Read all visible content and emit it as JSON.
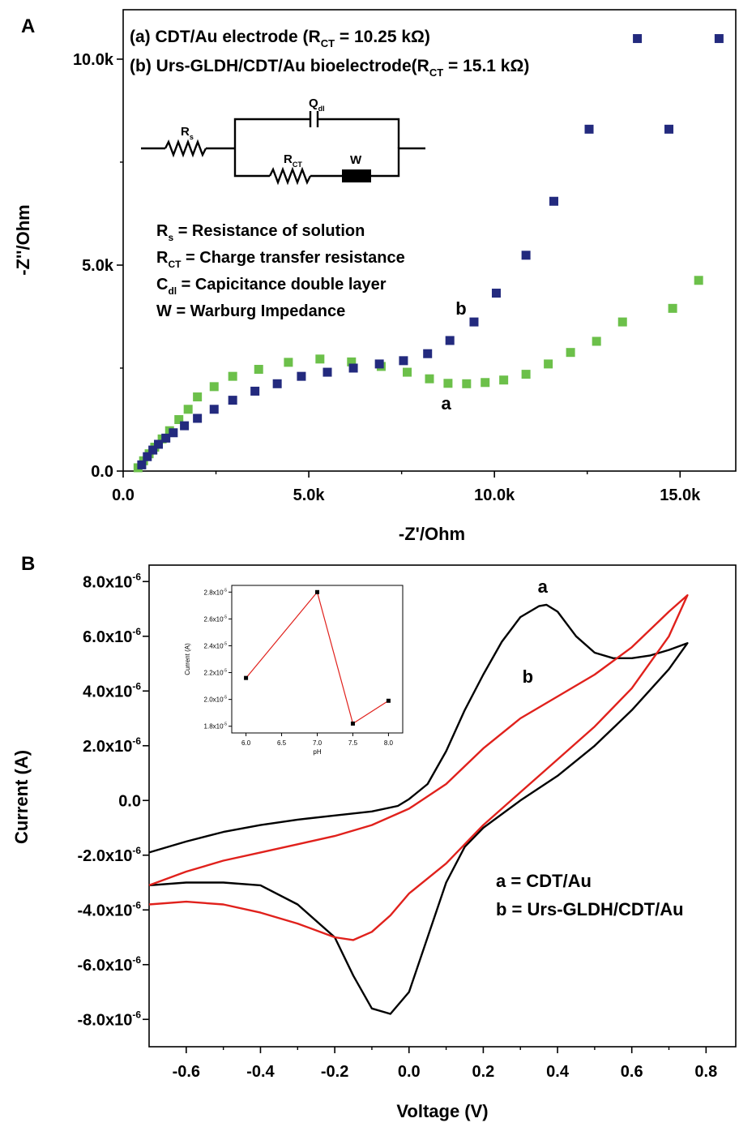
{
  "chart_data": [
    {
      "type": "scatter",
      "panel_label": "A",
      "xlabel": "-Z'/Ohm",
      "ylabel": "-Z''/Ohm",
      "xlim": [
        0,
        16500
      ],
      "ylim": [
        0,
        11200
      ],
      "x_ticks": [
        "0.0",
        "5.0k",
        "10.0k",
        "15.0k"
      ],
      "y_ticks": [
        "0.0",
        "5.0k",
        "10.0k"
      ],
      "legend_lines": [
        {
          "prefix": "(a) CDT/Au electrode (R",
          "sub": "CT",
          "suffix": " = 10.25 kΩ)"
        },
        {
          "prefix": "(b) Urs-GLDH/CDT/Au bioelectrode(R",
          "sub": "CT",
          "suffix": " = 15.1 kΩ)"
        }
      ],
      "definitions": [
        {
          "sym": "R",
          "sub": "s",
          "text": " = Resistance of solution"
        },
        {
          "sym": "R",
          "sub": "CT",
          "text": " = Charge transfer resistance"
        },
        {
          "sym": "C",
          "sub": "dl",
          "text": " = Capicitance double layer"
        },
        {
          "sym": "W",
          "sub": "",
          "text": " = Warburg Impedance"
        }
      ],
      "circuit_labels": {
        "rs": "R",
        "rs_sub": "s",
        "q": "Q",
        "q_sub": "dl",
        "rct": "R",
        "rct_sub": "CT",
        "w": "W"
      },
      "series": [
        {
          "name": "a",
          "color": "#6cc04a",
          "x": [
            400,
            550,
            700,
            850,
            1050,
            1250,
            1500,
            1750,
            2000,
            2450,
            2950,
            3650,
            4450,
            5300,
            6150,
            6950,
            7650,
            8250,
            8750,
            9250,
            9750,
            10250,
            10850,
            11450,
            12050,
            12750,
            13450,
            14800,
            15500
          ],
          "y": [
            80,
            250,
            420,
            580,
            780,
            980,
            1250,
            1500,
            1800,
            2050,
            2300,
            2470,
            2640,
            2720,
            2650,
            2540,
            2400,
            2240,
            2130,
            2120,
            2150,
            2210,
            2350,
            2600,
            2880,
            3150,
            3620,
            3950,
            4630
          ]
        },
        {
          "name": "b",
          "color": "#232a7e",
          "x": [
            500,
            650,
            800,
            950,
            1150,
            1350,
            1650,
            2000,
            2450,
            2950,
            3550,
            4150,
            4800,
            5500,
            6200,
            6900,
            7550,
            8200,
            8800,
            9450,
            10050,
            10850,
            11600,
            12550,
            13850,
            14700,
            16050
          ],
          "y": [
            150,
            350,
            510,
            650,
            800,
            930,
            1100,
            1280,
            1500,
            1720,
            1940,
            2120,
            2300,
            2400,
            2500,
            2600,
            2680,
            2850,
            3170,
            3620,
            4320,
            5240,
            6550,
            8300,
            10500,
            8300,
            10500
          ]
        }
      ],
      "labels": [
        {
          "text": "a",
          "x": 8700,
          "y": 1500
        },
        {
          "text": "b",
          "x": 9100,
          "y": 3800
        }
      ]
    },
    {
      "type": "line",
      "panel_label": "B",
      "xlabel": "Voltage (V)",
      "ylabel": "Current (A)",
      "xlim": [
        -0.7,
        0.88
      ],
      "ylim": [
        -9e-06,
        8.6e-06
      ],
      "x_ticks": [
        "-0.6",
        "-0.4",
        "-0.2",
        "0.0",
        "0.2",
        "0.4",
        "0.6",
        "0.8"
      ],
      "y_ticks": [
        {
          "m": "8.0x10",
          "e": "-6"
        },
        {
          "m": "6.0x10",
          "e": "-6"
        },
        {
          "m": "4.0x10",
          "e": "-6"
        },
        {
          "m": "2.0x10",
          "e": "-6"
        },
        {
          "m": "0.0",
          "e": ""
        },
        {
          "m": "-2.0x10",
          "e": "-6"
        },
        {
          "m": "-4.0x10",
          "e": "-6"
        },
        {
          "m": "-6.0x10",
          "e": "-6"
        },
        {
          "m": "-8.0x10",
          "e": "-6"
        }
      ],
      "legend": [
        "a = CDT/Au",
        "b = Urs-GLDH/CDT/Au"
      ],
      "series": [
        {
          "name": "a",
          "color": "#000000",
          "x": [
            -0.7,
            -0.6,
            -0.5,
            -0.4,
            -0.3,
            -0.2,
            -0.1,
            -0.03,
            0.0,
            0.05,
            0.1,
            0.15,
            0.2,
            0.25,
            0.3,
            0.35,
            0.37,
            0.4,
            0.45,
            0.5,
            0.55,
            0.6,
            0.65,
            0.7,
            0.75,
            0.75,
            0.7,
            0.6,
            0.5,
            0.4,
            0.3,
            0.2,
            0.15,
            0.1,
            0.05,
            0.0,
            -0.05,
            -0.1,
            -0.15,
            -0.2,
            -0.3,
            -0.4,
            -0.5,
            -0.6,
            -0.7
          ],
          "y": [
            -1.9e-06,
            -1.5e-06,
            -1.15e-06,
            -9e-07,
            -7e-07,
            -5.5e-07,
            -4e-07,
            -2e-07,
            5e-08,
            6e-07,
            1.8e-06,
            3.3e-06,
            4.6e-06,
            5.8e-06,
            6.7e-06,
            7.1e-06,
            7.15e-06,
            6.9e-06,
            6e-06,
            5.4e-06,
            5.2e-06,
            5.2e-06,
            5.3e-06,
            5.5e-06,
            5.75e-06,
            5.75e-06,
            4.8e-06,
            3.3e-06,
            2e-06,
            9e-07,
            0.0,
            -1e-06,
            -1.7e-06,
            -3e-06,
            -5e-06,
            -7e-06,
            -7.8e-06,
            -7.6e-06,
            -6.4e-06,
            -5e-06,
            -3.8e-06,
            -3.1e-06,
            -3e-06,
            -3e-06,
            -3.1e-06
          ]
        },
        {
          "name": "b",
          "color": "#e0211c",
          "x": [
            -0.7,
            -0.6,
            -0.5,
            -0.4,
            -0.3,
            -0.2,
            -0.1,
            0.0,
            0.1,
            0.2,
            0.3,
            0.4,
            0.5,
            0.6,
            0.7,
            0.75,
            0.75,
            0.7,
            0.6,
            0.5,
            0.4,
            0.3,
            0.2,
            0.1,
            0.0,
            -0.05,
            -0.1,
            -0.15,
            -0.2,
            -0.3,
            -0.4,
            -0.5,
            -0.6,
            -0.7
          ],
          "y": [
            -3.1e-06,
            -2.6e-06,
            -2.2e-06,
            -1.9e-06,
            -1.6e-06,
            -1.3e-06,
            -9e-07,
            -3e-07,
            6e-07,
            1.9e-06,
            3e-06,
            3.8e-06,
            4.6e-06,
            5.6e-06,
            6.9e-06,
            7.5e-06,
            7.5e-06,
            6e-06,
            4.1e-06,
            2.7e-06,
            1.5e-06,
            3e-07,
            -9e-07,
            -2.3e-06,
            -3.4e-06,
            -4.2e-06,
            -4.8e-06,
            -5.1e-06,
            -5e-06,
            -4.5e-06,
            -4.1e-06,
            -3.8e-06,
            -3.7e-06,
            -3.8e-06
          ]
        }
      ],
      "labels": [
        {
          "text": "a",
          "x": 0.36,
          "y": 7.6e-06
        },
        {
          "text": "b",
          "x": 0.32,
          "y": 4.3e-06
        }
      ],
      "inset": {
        "type": "line",
        "xlabel": "pH",
        "ylabel": "Current (A)",
        "color": "#e0211c",
        "xlim": [
          5.8,
          8.2
        ],
        "ylim": [
          1.75e-05,
          2.85e-05
        ],
        "x_ticks": [
          "6.0",
          "6.5",
          "7.0",
          "7.5",
          "8.0"
        ],
        "y_ticks": [
          {
            "m": "2.8x10",
            "e": "-5"
          },
          {
            "m": "2.6x10",
            "e": "-5"
          },
          {
            "m": "2.4x10",
            "e": "-5"
          },
          {
            "m": "2.2x10",
            "e": "-5"
          },
          {
            "m": "2.0x10",
            "e": "-5"
          },
          {
            "m": "1.8x10",
            "e": "-5"
          }
        ],
        "x": [
          6.0,
          7.0,
          7.5,
          8.0
        ],
        "y": [
          2.16e-05,
          2.8e-05,
          1.82e-05,
          1.99e-05
        ]
      }
    }
  ]
}
